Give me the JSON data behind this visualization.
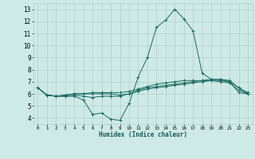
{
  "xlabel": "Humidex (Indice chaleur)",
  "xlim": [
    -0.5,
    23.5
  ],
  "ylim": [
    3.5,
    13.5
  ],
  "yticks": [
    4,
    5,
    6,
    7,
    8,
    9,
    10,
    11,
    12,
    13
  ],
  "xticks": [
    0,
    1,
    2,
    3,
    4,
    5,
    6,
    7,
    8,
    9,
    10,
    11,
    12,
    13,
    14,
    15,
    16,
    17,
    18,
    19,
    20,
    21,
    22,
    23
  ],
  "background_color": "#ceeae6",
  "grid_color": "#b0ceca",
  "line_color": "#1a6b5e",
  "series": [
    [
      6.5,
      5.9,
      5.8,
      5.8,
      5.8,
      5.5,
      4.3,
      4.4,
      3.9,
      3.8,
      5.2,
      7.4,
      9.0,
      11.5,
      12.1,
      13.0,
      12.2,
      11.2,
      7.7,
      7.2,
      7.2,
      7.0,
      6.1,
      6.0
    ],
    [
      6.5,
      5.9,
      5.8,
      5.8,
      5.9,
      5.8,
      5.7,
      5.8,
      5.8,
      5.8,
      6.0,
      6.2,
      6.4,
      6.5,
      6.6,
      6.7,
      6.8,
      6.9,
      7.0,
      7.1,
      7.1,
      7.0,
      6.5,
      6.0
    ],
    [
      6.5,
      5.9,
      5.8,
      5.9,
      6.0,
      6.0,
      6.0,
      6.0,
      6.0,
      5.9,
      6.0,
      6.3,
      6.5,
      6.6,
      6.7,
      6.8,
      6.9,
      7.0,
      7.1,
      7.2,
      7.2,
      7.1,
      6.5,
      6.1
    ],
    [
      6.5,
      5.9,
      5.8,
      5.9,
      6.0,
      6.0,
      6.1,
      6.1,
      6.1,
      6.1,
      6.2,
      6.4,
      6.6,
      6.8,
      6.9,
      7.0,
      7.1,
      7.1,
      7.1,
      7.1,
      7.0,
      6.9,
      6.3,
      6.0
    ]
  ]
}
